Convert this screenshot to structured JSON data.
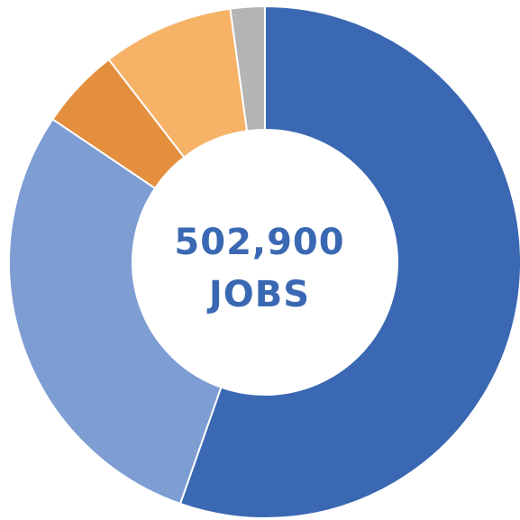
{
  "chart_data": {
    "type": "pie",
    "donut": true,
    "center_text": {
      "value": "502,900",
      "unit": "JOBS"
    },
    "values": [
      56.2,
      29.5,
      5.2,
      8.4,
      2.2
    ],
    "colors": [
      "#3a68b2",
      "#7d9dd3",
      "#e38f3e",
      "#f6b266",
      "#b4b4b4"
    ],
    "text_color": "#3a68b2",
    "start_angle_deg": 0,
    "direction": "clockwise"
  }
}
